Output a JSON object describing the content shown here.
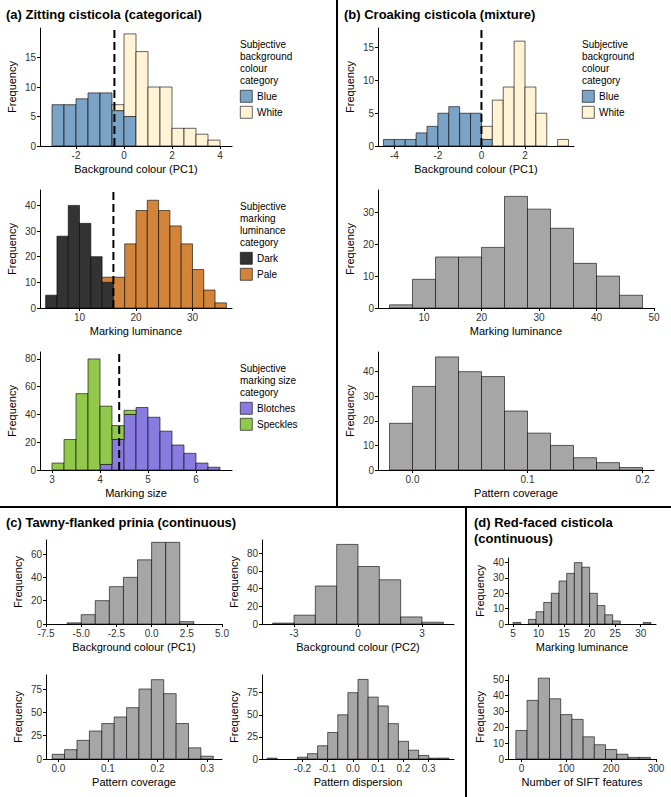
{
  "chart_data": [
    {
      "type": "histogram",
      "title": "(a) Zitting cisticola (categorical)",
      "xlabel": "Background colour (PC1)",
      "ylabel": "Frequency",
      "bins": [
        -3,
        -2.5,
        -2,
        -1.5,
        -1,
        -0.5,
        0,
        0.5,
        1,
        1.5,
        2,
        2.5,
        3,
        3.5,
        4
      ],
      "series": [
        {
          "name": "Blue",
          "color": "#7BA3C6",
          "values": [
            7,
            7,
            8,
            9,
            9,
            6,
            5,
            0,
            0,
            0,
            0,
            0,
            0,
            0
          ]
        },
        {
          "name": "White",
          "color": "#FFF3D6",
          "values": [
            0,
            0,
            0,
            0,
            0,
            1,
            14,
            16,
            10,
            10,
            3,
            3,
            2,
            1
          ]
        }
      ],
      "stacked": true,
      "legend": "right",
      "legend_title": "Subjective background colour category",
      "cutoff": -0.4,
      "xlim": [
        -3.5,
        4.5
      ],
      "xticks": [
        -2,
        0,
        2,
        4
      ],
      "ylim": [
        0,
        20
      ],
      "yticks": [
        0,
        5,
        10,
        15
      ]
    },
    {
      "type": "histogram",
      "xlabel": "Marking luminance",
      "ylabel": "Frequency",
      "bins": [
        4,
        6,
        8,
        10,
        12,
        14,
        16,
        18,
        20,
        22,
        24,
        26,
        28,
        30,
        32,
        34,
        36
      ],
      "series": [
        {
          "name": "Dark",
          "color": "#333333",
          "values": [
            5,
            28,
            40,
            33,
            20,
            10,
            0,
            0,
            0,
            0,
            0,
            0,
            0,
            0,
            0,
            0
          ]
        },
        {
          "name": "Pale",
          "color": "#D2843A",
          "values": [
            0,
            0,
            0,
            0,
            0,
            2,
            12,
            25,
            38,
            42,
            38,
            32,
            25,
            15,
            7,
            2
          ]
        }
      ],
      "stacked": true,
      "legend": "right",
      "legend_title": "Subjective marking luminance category",
      "cutoff": 16,
      "xlim": [
        3,
        37
      ],
      "xticks": [
        10,
        20,
        30
      ],
      "ylim": [
        0,
        46
      ],
      "yticks": [
        0,
        10,
        20,
        30,
        40
      ]
    },
    {
      "type": "histogram",
      "xlabel": "Marking size",
      "ylabel": "Frequency",
      "bins": [
        3,
        3.25,
        3.5,
        3.75,
        4,
        4.25,
        4.5,
        4.75,
        5,
        5.25,
        5.5,
        5.75,
        6,
        6.25,
        6.5
      ],
      "series": [
        {
          "name": "Blotches",
          "color": "#8A7BE0",
          "values": [
            0,
            0,
            0,
            0,
            4,
            22,
            40,
            45,
            38,
            28,
            18,
            12,
            5,
            2
          ]
        },
        {
          "name": "Speckles",
          "color": "#92C94A",
          "values": [
            5,
            22,
            55,
            80,
            42,
            10,
            3,
            0,
            0,
            0,
            0,
            0,
            0,
            0
          ]
        }
      ],
      "stacked": true,
      "legend": "right",
      "legend_title": "Subjective marking size category",
      "cutoff": 4.4,
      "xlim": [
        2.75,
        6.75
      ],
      "xticks": [
        3,
        4,
        5,
        6
      ],
      "ylim": [
        0,
        85
      ],
      "yticks": [
        0,
        20,
        40,
        60,
        80
      ]
    },
    {
      "type": "histogram",
      "title": "(b) Croaking cisticola (mixture)",
      "xlabel": "Background colour (PC1)",
      "ylabel": "Frequency",
      "bins": [
        -4.5,
        -4,
        -3.5,
        -3,
        -2.5,
        -2,
        -1.5,
        -1,
        -0.5,
        0,
        0.5,
        1,
        1.5,
        2,
        2.5,
        3,
        3.5,
        4
      ],
      "series": [
        {
          "name": "Blue",
          "color": "#7BA3C6",
          "values": [
            1,
            1,
            1,
            2,
            3,
            5,
            6,
            5,
            5,
            1,
            0,
            0,
            0,
            0,
            0,
            0,
            0
          ]
        },
        {
          "name": "White",
          "color": "#FFF3D6",
          "values": [
            0,
            0,
            0,
            0,
            0,
            0,
            0,
            0,
            0,
            2,
            7,
            9,
            16,
            9,
            5,
            0,
            1
          ]
        }
      ],
      "stacked": true,
      "legend": "right",
      "legend_title": "Subjective background colour category",
      "cutoff": 0,
      "xlim": [
        -4.75,
        4.25
      ],
      "xticks": [
        -4,
        -2,
        0,
        2
      ],
      "ylim": [
        0,
        18
      ],
      "yticks": [
        0,
        5,
        10,
        15
      ]
    },
    {
      "type": "histogram",
      "xlabel": "Marking luminance",
      "ylabel": "Frequency",
      "bins": [
        4,
        8,
        12,
        16,
        20,
        24,
        28,
        32,
        36,
        40,
        44,
        48
      ],
      "values": [
        1,
        9,
        16,
        16,
        19,
        35,
        31,
        25,
        14,
        10,
        4
      ],
      "color": "#A6A6A6",
      "xlim": [
        2,
        50
      ],
      "xticks": [
        10,
        20,
        30,
        40,
        50
      ],
      "ylim": [
        0,
        37
      ],
      "yticks": [
        0,
        10,
        20,
        30
      ]
    },
    {
      "type": "histogram",
      "xlabel": "Pattern coverage",
      "ylabel": "Frequency",
      "bins": [
        -0.02,
        0,
        0.02,
        0.04,
        0.06,
        0.08,
        0.1,
        0.12,
        0.14,
        0.16,
        0.18,
        0.2
      ],
      "values": [
        19,
        34,
        46,
        40,
        38,
        24,
        15,
        10,
        5,
        3,
        1
      ],
      "color": "#A6A6A6",
      "xlim": [
        -0.03,
        0.21
      ],
      "xticks": [
        {
          "value": 0,
          "label": "0.0"
        },
        0.1,
        0.2
      ],
      "ylim": [
        0,
        48
      ],
      "yticks": [
        0,
        10,
        20,
        30,
        40
      ]
    },
    {
      "type": "histogram",
      "title": "(c) Tawny-flanked prinia (continuous)",
      "xlabel": "Background colour (PC1)",
      "ylabel": "Frequency",
      "bins": [
        -6,
        -5,
        -4,
        -3,
        -2,
        -1,
        0,
        1,
        2,
        3
      ],
      "values": [
        1,
        8,
        20,
        32,
        40,
        55,
        70,
        70,
        2
      ],
      "color": "#A6A6A6",
      "xlim": [
        -7.5,
        5
      ],
      "xticks": [
        -7.5,
        {
          "value": -5,
          "label": "-5.0"
        },
        -2.5,
        {
          "value": 0,
          "label": "0.0"
        },
        2.5,
        {
          "value": 5,
          "label": "5.0"
        }
      ],
      "ylim": [
        0,
        72
      ],
      "yticks": [
        0,
        20,
        40,
        60
      ]
    },
    {
      "type": "histogram",
      "xlabel": "Background colour (PC2)",
      "ylabel": "Frequency",
      "bins": [
        -4,
        -3,
        -2,
        -1,
        0,
        1,
        2,
        3,
        4
      ],
      "values": [
        1,
        10,
        43,
        90,
        65,
        50,
        8,
        2
      ],
      "color": "#A6A6A6",
      "xlim": [
        -4.5,
        4.5
      ],
      "xticks": [
        -3,
        0,
        3
      ],
      "ylim": [
        0,
        95
      ],
      "yticks": [
        0,
        20,
        40,
        60,
        80
      ]
    },
    {
      "type": "histogram",
      "xlabel": "Pattern coverage",
      "ylabel": "Frequency",
      "bins": [
        -0.0125,
        0.0125,
        0.0375,
        0.0625,
        0.0875,
        0.1125,
        0.1375,
        0.1625,
        0.1875,
        0.2125,
        0.2375,
        0.2625,
        0.2875,
        0.3125
      ],
      "values": [
        5,
        10,
        20,
        30,
        38,
        45,
        55,
        75,
        85,
        70,
        38,
        12,
        3
      ],
      "color": "#A6A6A6",
      "xlim": [
        -0.025,
        0.33
      ],
      "xticks": [
        {
          "value": 0,
          "label": "0.0"
        },
        0.1,
        0.2,
        0.3
      ],
      "ylim": [
        0,
        90
      ],
      "yticks": [
        0,
        25,
        50,
        75
      ]
    },
    {
      "type": "histogram",
      "xlabel": "Pattern dispersion",
      "ylabel": "Frequency",
      "bins": [
        -0.34,
        -0.3,
        -0.26,
        -0.22,
        -0.18,
        -0.14,
        -0.1,
        -0.06,
        -0.02,
        0.02,
        0.06,
        0.1,
        0.14,
        0.18,
        0.22,
        0.26,
        0.3,
        0.34,
        0.38
      ],
      "values": [
        1,
        0,
        0,
        2,
        6,
        15,
        30,
        50,
        75,
        90,
        70,
        60,
        40,
        20,
        10,
        4,
        1,
        1
      ],
      "color": "#A6A6A6",
      "xlim": [
        -0.36,
        0.4
      ],
      "xticks": [
        -0.2,
        -0.1,
        {
          "value": 0,
          "label": "0.0"
        },
        0.1,
        0.2,
        0.3
      ],
      "ylim": [
        0,
        95
      ],
      "yticks": [
        0,
        25,
        50,
        75
      ]
    },
    {
      "type": "histogram",
      "title": "(d) Red-faced cisticola (continuous)",
      "xlabel": "Marking luminance",
      "ylabel": "Frequency",
      "bins": [
        5,
        6.5,
        8,
        9.5,
        11,
        12.5,
        14,
        15.5,
        17,
        18.5,
        20,
        21.5,
        23,
        24.5,
        26,
        27.5,
        29,
        30.5,
        32
      ],
      "values": [
        1,
        0,
        3,
        8,
        14,
        20,
        28,
        33,
        40,
        37,
        20,
        12,
        6,
        2,
        0,
        0,
        0,
        1
      ],
      "color": "#A6A6A6",
      "xlim": [
        4,
        33
      ],
      "xticks": [
        5,
        10,
        15,
        20,
        25,
        30
      ],
      "ylim": [
        0,
        43
      ],
      "yticks": [
        0,
        10,
        20,
        30,
        40
      ]
    },
    {
      "type": "histogram",
      "xlabel": "Number of SIFT features",
      "ylabel": "Frequency",
      "bins": [
        -12.5,
        12.5,
        37.5,
        62.5,
        87.5,
        112.5,
        137.5,
        162.5,
        187.5,
        212.5,
        237.5,
        262.5,
        287.5
      ],
      "values": [
        18,
        37,
        51,
        38,
        28,
        25,
        14,
        9,
        6,
        3,
        1,
        1
      ],
      "color": "#A6A6A6",
      "xlim": [
        -30,
        300
      ],
      "xticks": [
        0,
        100,
        200,
        300
      ],
      "ylim": [
        0,
        53
      ],
      "yticks": [
        0,
        10,
        20,
        30,
        40,
        50
      ]
    }
  ]
}
